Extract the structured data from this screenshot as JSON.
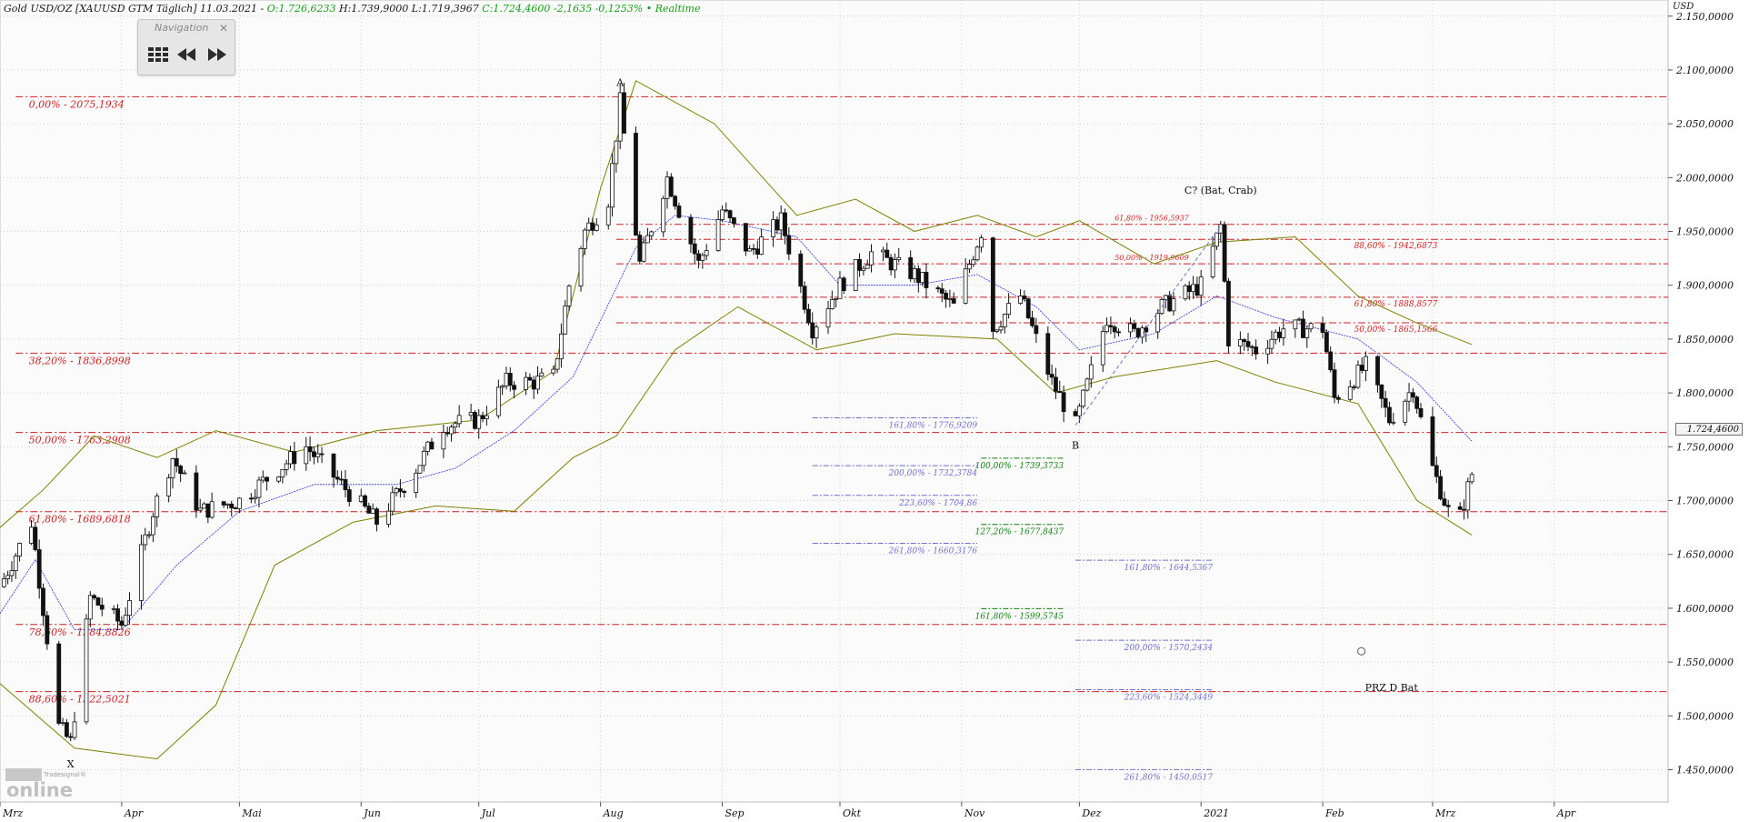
{
  "header": {
    "instrument": "Gold USD/OZ [XAUUSD GTM Täglich] 11.03.2021 -",
    "open": "O:1.726,6233",
    "high": "H:1.739,9000",
    "low": "L:1.719,3967",
    "close": "C:1.724,4600 -2,1635 -0,1253% • Realtime"
  },
  "navigation": {
    "title": "Navigation",
    "close_icon": "close-icon",
    "buttons": [
      "grid-icon",
      "rewind-icon",
      "fast-forward-icon"
    ]
  },
  "logo": {
    "small": "Tradesignal®",
    "big": "online"
  },
  "colors": {
    "candle": "#111111",
    "bollinger": "#808000",
    "moving_average": "#3030e0",
    "fib_red": "#d02020",
    "ext_blue": "#7070d0",
    "ext_green": "#108010",
    "header_green": "#15a015"
  },
  "chart_data": {
    "type": "candlestick",
    "title": "Gold USD/OZ [XAUUSD GTM Täglich]",
    "unit_label": "USD",
    "current_price_label": "1.724,4600",
    "ylim": [
      1420,
      2165
    ],
    "x_start": "2020-03-01",
    "x_end": "2021-04-30",
    "grid": true,
    "y_ticks": [
      {
        "value": 1450,
        "label": "1.450,0000"
      },
      {
        "value": 1500,
        "label": "1.500,0000"
      },
      {
        "value": 1550,
        "label": "1.550,0000"
      },
      {
        "value": 1600,
        "label": "1.600,0000"
      },
      {
        "value": 1650,
        "label": "1.650,0000"
      },
      {
        "value": 1700,
        "label": "1.700,0000"
      },
      {
        "value": 1750,
        "label": "1.750,0000"
      },
      {
        "value": 1800,
        "label": "1.800,0000"
      },
      {
        "value": 1850,
        "label": "1.850,0000"
      },
      {
        "value": 1900,
        "label": "1.900,0000"
      },
      {
        "value": 1950,
        "label": "1.950,0000"
      },
      {
        "value": 2000,
        "label": "2.000,0000"
      },
      {
        "value": 2050,
        "label": "2.050,0000"
      },
      {
        "value": 2100,
        "label": "2.100,0000"
      },
      {
        "value": 2150,
        "label": "2.150,0000"
      }
    ],
    "x_ticks": [
      {
        "date": "2020-03-01",
        "label": "Mrz"
      },
      {
        "date": "2020-04-01",
        "label": "Apr"
      },
      {
        "date": "2020-05-01",
        "label": "Mai"
      },
      {
        "date": "2020-06-01",
        "label": "Jun"
      },
      {
        "date": "2020-07-01",
        "label": "Jul"
      },
      {
        "date": "2020-08-01",
        "label": "Aug"
      },
      {
        "date": "2020-09-01",
        "label": "Sep"
      },
      {
        "date": "2020-10-01",
        "label": "Okt"
      },
      {
        "date": "2020-11-01",
        "label": "Nov"
      },
      {
        "date": "2020-12-01",
        "label": "Dez"
      },
      {
        "date": "2021-01-01",
        "label": "2021"
      },
      {
        "date": "2021-02-01",
        "label": "Feb"
      },
      {
        "date": "2021-03-01",
        "label": "Mrz"
      },
      {
        "date": "2021-04-01",
        "label": "Apr"
      }
    ],
    "price_path": [
      [
        "2020-03-01",
        1620
      ],
      [
        "2020-03-09",
        1680
      ],
      [
        "2020-03-12",
        1600
      ],
      [
        "2020-03-16",
        1490
      ],
      [
        "2020-03-19",
        1475
      ],
      [
        "2020-03-24",
        1610
      ],
      [
        "2020-04-01",
        1585
      ],
      [
        "2020-04-09",
        1690
      ],
      [
        "2020-04-14",
        1740
      ],
      [
        "2020-04-21",
        1690
      ],
      [
        "2020-05-01",
        1700
      ],
      [
        "2020-05-18",
        1750
      ],
      [
        "2020-06-05",
        1680
      ],
      [
        "2020-06-15",
        1730
      ],
      [
        "2020-06-22",
        1770
      ],
      [
        "2020-07-01",
        1775
      ],
      [
        "2020-07-08",
        1810
      ],
      [
        "2020-07-15",
        1810
      ],
      [
        "2020-07-20",
        1815
      ],
      [
        "2020-07-24",
        1900
      ],
      [
        "2020-07-28",
        1950
      ],
      [
        "2020-08-03",
        1980
      ],
      [
        "2020-08-06",
        2070
      ],
      [
        "2020-08-11",
        1920
      ],
      [
        "2020-08-18",
        2000
      ],
      [
        "2020-08-26",
        1920
      ],
      [
        "2020-09-01",
        1970
      ],
      [
        "2020-09-08",
        1930
      ],
      [
        "2020-09-16",
        1960
      ],
      [
        "2020-09-24",
        1860
      ],
      [
        "2020-10-01",
        1900
      ],
      [
        "2020-10-09",
        1930
      ],
      [
        "2020-10-20",
        1910
      ],
      [
        "2020-10-30",
        1880
      ],
      [
        "2020-11-06",
        1950
      ],
      [
        "2020-11-09",
        1860
      ],
      [
        "2020-11-16",
        1890
      ],
      [
        "2020-11-24",
        1810
      ],
      [
        "2020-11-30",
        1770
      ],
      [
        "2020-12-08",
        1870
      ],
      [
        "2020-12-15",
        1855
      ],
      [
        "2020-12-22",
        1880
      ],
      [
        "2021-01-01",
        1900
      ],
      [
        "2021-01-06",
        1955
      ],
      [
        "2021-01-08",
        1850
      ],
      [
        "2021-01-15",
        1840
      ],
      [
        "2021-01-22",
        1860
      ],
      [
        "2021-02-01",
        1860
      ],
      [
        "2021-02-04",
        1795
      ],
      [
        "2021-02-12",
        1825
      ],
      [
        "2021-02-18",
        1775
      ],
      [
        "2021-02-24",
        1805
      ],
      [
        "2021-03-01",
        1730
      ],
      [
        "2021-03-05",
        1690
      ],
      [
        "2021-03-08",
        1685
      ],
      [
        "2021-03-11",
        1725
      ]
    ],
    "moving_average_path": [
      [
        "2020-03-01",
        1595
      ],
      [
        "2020-03-10",
        1645
      ],
      [
        "2020-03-20",
        1580
      ],
      [
        "2020-04-01",
        1580
      ],
      [
        "2020-04-15",
        1640
      ],
      [
        "2020-05-01",
        1690
      ],
      [
        "2020-05-20",
        1715
      ],
      [
        "2020-06-10",
        1715
      ],
      [
        "2020-06-25",
        1730
      ],
      [
        "2020-07-10",
        1765
      ],
      [
        "2020-07-25",
        1815
      ],
      [
        "2020-08-10",
        1935
      ],
      [
        "2020-08-20",
        1965
      ],
      [
        "2020-09-01",
        1960
      ],
      [
        "2020-09-20",
        1945
      ],
      [
        "2020-10-01",
        1900
      ],
      [
        "2020-10-20",
        1900
      ],
      [
        "2020-11-05",
        1910
      ],
      [
        "2020-11-20",
        1880
      ],
      [
        "2020-12-01",
        1840
      ],
      [
        "2020-12-20",
        1855
      ],
      [
        "2021-01-05",
        1890
      ],
      [
        "2021-01-20",
        1870
      ],
      [
        "2021-02-10",
        1850
      ],
      [
        "2021-02-25",
        1810
      ],
      [
        "2021-03-11",
        1755
      ]
    ],
    "bollinger_upper_path": [
      [
        "2020-03-01",
        1675
      ],
      [
        "2020-03-12",
        1710
      ],
      [
        "2020-03-25",
        1760
      ],
      [
        "2020-04-10",
        1740
      ],
      [
        "2020-04-25",
        1765
      ],
      [
        "2020-05-15",
        1745
      ],
      [
        "2020-06-05",
        1765
      ],
      [
        "2020-07-01",
        1775
      ],
      [
        "2020-07-20",
        1820
      ],
      [
        "2020-08-01",
        1990
      ],
      [
        "2020-08-10",
        2090
      ],
      [
        "2020-08-30",
        2050
      ],
      [
        "2020-09-20",
        1965
      ],
      [
        "2020-10-05",
        1980
      ],
      [
        "2020-10-20",
        1950
      ],
      [
        "2020-11-05",
        1965
      ],
      [
        "2020-11-20",
        1945
      ],
      [
        "2020-12-01",
        1960
      ],
      [
        "2020-12-20",
        1920
      ],
      [
        "2021-01-05",
        1940
      ],
      [
        "2021-01-25",
        1945
      ],
      [
        "2021-02-10",
        1890
      ],
      [
        "2021-02-25",
        1865
      ],
      [
        "2021-03-11",
        1845
      ]
    ],
    "bollinger_lower_path": [
      [
        "2020-03-01",
        1530
      ],
      [
        "2020-03-20",
        1470
      ],
      [
        "2020-04-10",
        1460
      ],
      [
        "2020-04-25",
        1510
      ],
      [
        "2020-05-10",
        1640
      ],
      [
        "2020-05-30",
        1680
      ],
      [
        "2020-06-20",
        1695
      ],
      [
        "2020-07-10",
        1690
      ],
      [
        "2020-07-25",
        1740
      ],
      [
        "2020-08-05",
        1760
      ],
      [
        "2020-08-20",
        1840
      ],
      [
        "2020-09-05",
        1880
      ],
      [
        "2020-09-25",
        1840
      ],
      [
        "2020-10-15",
        1855
      ],
      [
        "2020-11-10",
        1850
      ],
      [
        "2020-11-25",
        1800
      ],
      [
        "2020-12-10",
        1815
      ],
      [
        "2021-01-05",
        1830
      ],
      [
        "2021-01-20",
        1810
      ],
      [
        "2021-02-10",
        1790
      ],
      [
        "2021-02-25",
        1700
      ],
      [
        "2021-03-11",
        1668
      ]
    ],
    "fib_levels": [
      {
        "value": 2075.1934,
        "label": "0,00% - 2075,1934",
        "date": "2020-03-06"
      },
      {
        "value": 1836.8998,
        "label": "38,20% - 1836,8998",
        "date": "2020-03-06"
      },
      {
        "value": 1763.2908,
        "label": "50,00% - 1763,2908",
        "date": "2020-03-06"
      },
      {
        "value": 1689.6818,
        "label": "61,80% - 1689,6818",
        "date": "2020-03-06"
      },
      {
        "value": 1584.8826,
        "label": "78,60% - 1584,8826",
        "date": "2020-03-06"
      },
      {
        "value": 1522.5021,
        "label": "88,60% - 1522,5021",
        "date": "2020-03-06"
      }
    ],
    "bc_levels": [
      {
        "value": 1956.5937,
        "label": "61,80% - 1956,5937",
        "date": "2020-12-10"
      },
      {
        "value": 1919.9609,
        "label": "50,00% - 1919,9609",
        "date": "2020-12-10"
      }
    ],
    "right_levels": [
      {
        "value": 1942.6873,
        "label": "88,60% - 1942,6873",
        "date": "2021-02-09"
      },
      {
        "value": 1888.8577,
        "label": "61,80% - 1888,8577",
        "date": "2021-02-09"
      },
      {
        "value": 1865.1566,
        "label": "50,00% - 1865,1566",
        "date": "2021-02-09"
      }
    ],
    "blue_extensions_a": [
      {
        "value": 1776.9209,
        "label": "161,80% - 1776,9209"
      },
      {
        "value": 1732.3784,
        "label": "200,00% - 1732,3784"
      },
      {
        "value": 1704.86,
        "label": "223,60% - 1704,86"
      },
      {
        "value": 1660.3176,
        "label": "261,80% - 1660,3176"
      }
    ],
    "green_extensions": [
      {
        "value": 1739.3733,
        "label": "100,00% - 1739,3733"
      },
      {
        "value": 1677.8437,
        "label": "127,20% - 1677,8437"
      },
      {
        "value": 1599.5745,
        "label": "161,80% - 1599,5745"
      }
    ],
    "blue_extensions_b": [
      {
        "value": 1644.5367,
        "label": "161,80% - 1644,5367"
      },
      {
        "value": 1570.2434,
        "label": "200,00% - 1570,2434"
      },
      {
        "value": 1524.3449,
        "label": "223,60% - 1524,3449"
      },
      {
        "value": 1450.0517,
        "label": "261,80% - 1450,0517"
      }
    ],
    "pattern_points": [
      {
        "label": "X",
        "date": "2020-03-19",
        "value": 1452
      },
      {
        "label": "A",
        "date": "2020-08-06",
        "value": 2085
      },
      {
        "label": "B",
        "date": "2020-11-30",
        "value": 1748
      },
      {
        "label": "C? (Bat, Crab)",
        "date": "2021-01-06",
        "value": 1985
      }
    ],
    "prz_label": {
      "label": "PRZ D Bat",
      "date": "2021-02-09",
      "value": 1530
    }
  }
}
